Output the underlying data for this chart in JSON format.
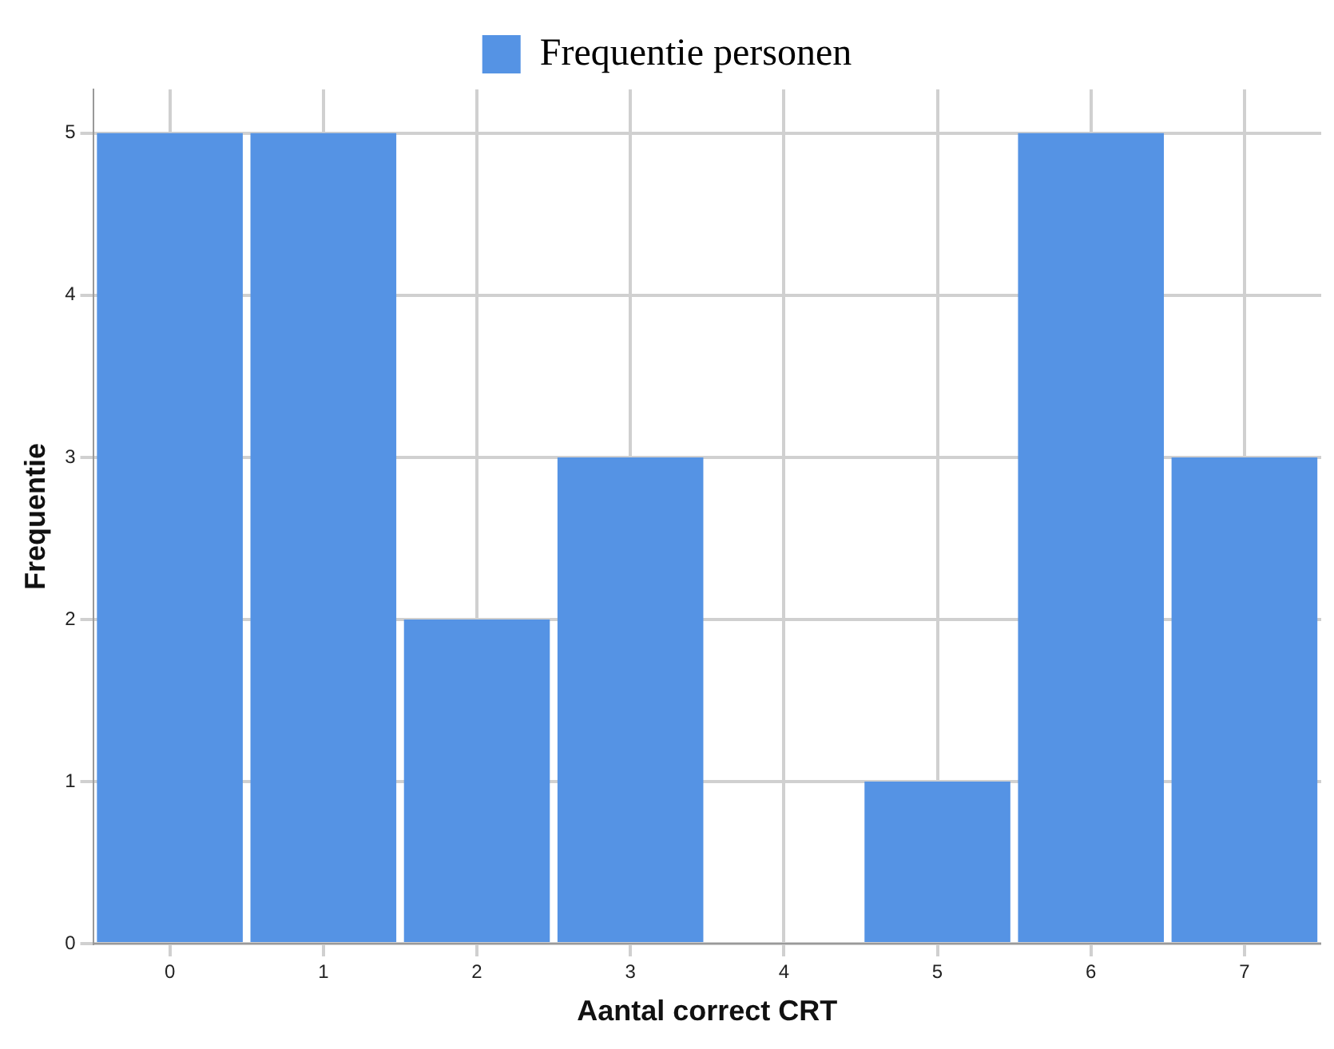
{
  "chart_data": {
    "type": "bar",
    "xlabel": "Aantal correct CRT",
    "ylabel": "Frequentie",
    "categories": [
      "0",
      "1",
      "2",
      "3",
      "4",
      "5",
      "6",
      "7"
    ],
    "series": [
      {
        "name": "Frequentie personen",
        "color": "#5593e4",
        "values": [
          5,
          5,
          2,
          3,
          0,
          1,
          5,
          3
        ]
      }
    ],
    "ylim": [
      0,
      5.27
    ],
    "yticks": [
      0,
      1,
      2,
      3,
      4,
      5
    ],
    "grid": true,
    "legend": "top"
  }
}
